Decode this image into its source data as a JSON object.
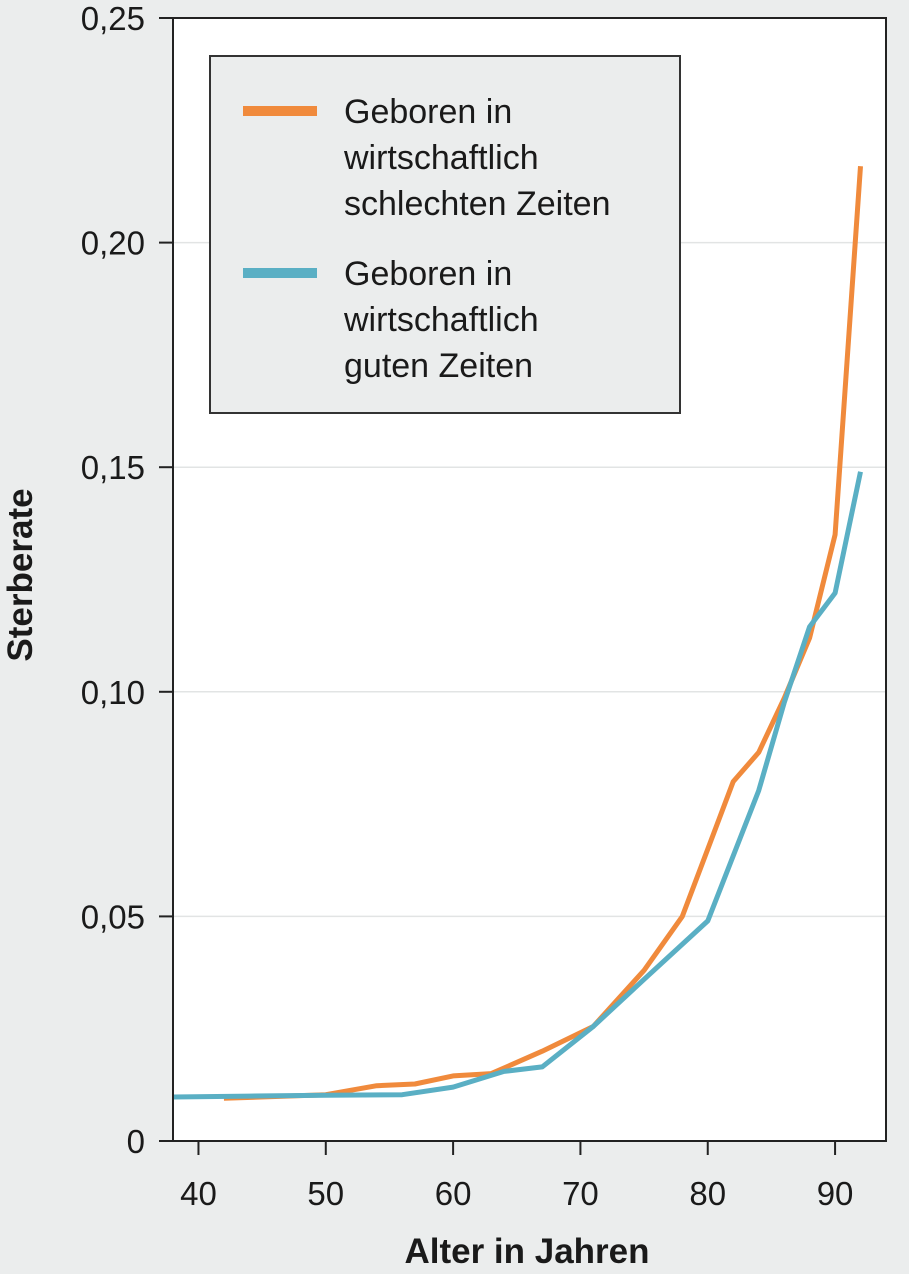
{
  "chart_data": {
    "type": "line",
    "xlabel": "Alter in Jahren",
    "ylabel": "Sterberate",
    "xlim": [
      38,
      94
    ],
    "ylim": [
      0,
      0.25
    ],
    "x_ticks": [
      40,
      50,
      60,
      70,
      80,
      90
    ],
    "x_tick_labels": [
      "40",
      "50",
      "60",
      "70",
      "80",
      "90"
    ],
    "y_ticks": [
      0,
      0.05,
      0.1,
      0.15,
      0.2,
      0.25
    ],
    "y_tick_labels": [
      "0",
      "0,05",
      "0,10",
      "0,15",
      "0,20",
      "0,25"
    ],
    "grid": "horizontal",
    "legend_position": "top-left",
    "series": [
      {
        "name": "Geboren in wirtschaftlich schlechten Zeiten",
        "legend_lines": [
          "Geboren in",
          "wirtschaftlich",
          "schlechten Zeiten"
        ],
        "color": "#f08a3c",
        "x": [
          42,
          50,
          54,
          57,
          60,
          63,
          67,
          71,
          75,
          78,
          80,
          82,
          84,
          86,
          88,
          90,
          92
        ],
        "y": [
          0.0095,
          0.0103,
          0.0123,
          0.0127,
          0.0145,
          0.015,
          0.02,
          0.0255,
          0.038,
          0.05,
          0.065,
          0.08,
          0.0865,
          0.0985,
          0.112,
          0.135,
          0.217
        ]
      },
      {
        "name": "Geboren in wirtschaftlich guten Zeiten",
        "legend_lines": [
          "Geboren in",
          "wirtschaftlich",
          "guten Zeiten"
        ],
        "color": "#5aafc4",
        "x": [
          38,
          44,
          50,
          56,
          60,
          64,
          67,
          71,
          75,
          80,
          84,
          86,
          88,
          90,
          92
        ],
        "y": [
          0.0098,
          0.01,
          0.0102,
          0.0103,
          0.012,
          0.0155,
          0.0165,
          0.0255,
          0.036,
          0.049,
          0.078,
          0.0975,
          0.1145,
          0.122,
          0.149
        ]
      }
    ]
  }
}
